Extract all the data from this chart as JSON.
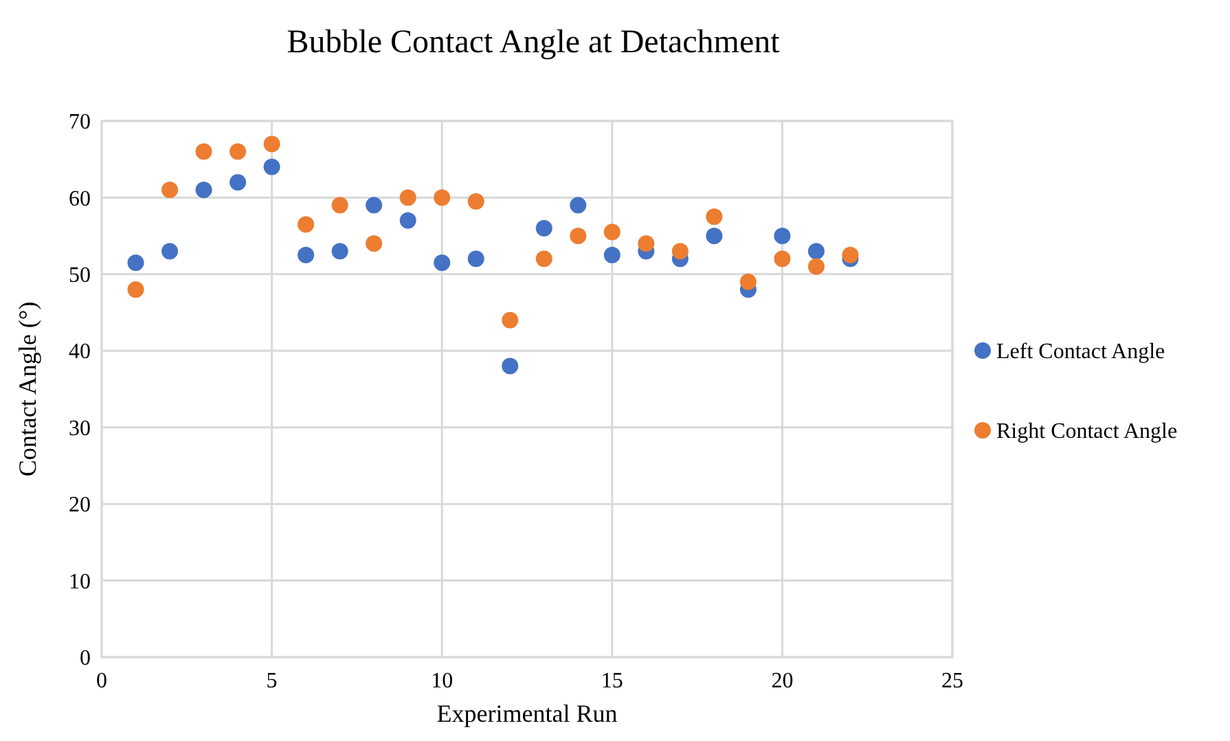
{
  "chart_data": {
    "type": "scatter",
    "title": "Bubble Contact Angle at Detachment",
    "xlabel": "Experimental Run",
    "ylabel": "Contact Angle (°)",
    "x": [
      1,
      2,
      3,
      4,
      5,
      6,
      7,
      8,
      9,
      10,
      11,
      12,
      13,
      14,
      15,
      16,
      17,
      18,
      19,
      20,
      21,
      22
    ],
    "series": [
      {
        "name": "Left Contact Angle",
        "color": "#4472c4",
        "values": [
          51.5,
          53,
          61,
          62,
          64,
          52.5,
          53,
          59,
          57,
          51.5,
          52,
          38,
          56,
          59,
          52.5,
          53,
          52,
          55,
          48,
          55,
          53,
          52
        ]
      },
      {
        "name": "Right Contact Angle",
        "color": "#ed7d31",
        "values": [
          48,
          61,
          66,
          66,
          67,
          56.5,
          59,
          54,
          60,
          60,
          59.5,
          44,
          52,
          55,
          55.5,
          54,
          53,
          57.5,
          49,
          52,
          51,
          52.5
        ]
      }
    ],
    "xlim": [
      0,
      25
    ],
    "xticks": [
      0,
      5,
      10,
      15,
      20,
      25
    ],
    "ylim": [
      0,
      70
    ],
    "yticks": [
      0,
      10,
      20,
      30,
      40,
      50,
      60,
      70
    ],
    "grid": true,
    "legend": "right",
    "marker": "circle"
  }
}
